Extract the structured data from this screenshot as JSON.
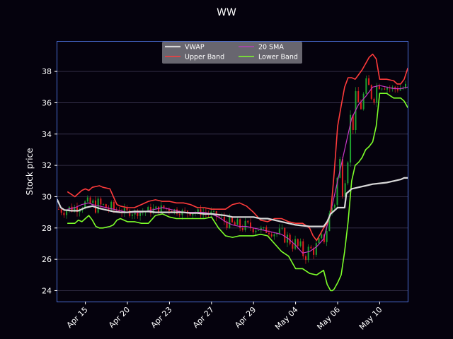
{
  "chart_data": {
    "type": "line",
    "title": "WW",
    "xlabel": "",
    "ylabel": "Stock price",
    "ylim": [
      23.3,
      39.9
    ],
    "yticks": [
      24,
      26,
      28,
      30,
      32,
      34,
      36,
      38
    ],
    "xlim": [
      0,
      100
    ],
    "xticks": [
      {
        "label": "Apr 15",
        "pos": 8
      },
      {
        "label": "Apr 20",
        "pos": 20
      },
      {
        "label": "Apr 23",
        "pos": 32
      },
      {
        "label": "Apr 27",
        "pos": 44
      },
      {
        "label": "Apr 29",
        "pos": 56
      },
      {
        "label": "May 04",
        "pos": 68
      },
      {
        "label": "May 06",
        "pos": 80
      },
      {
        "label": "May 10",
        "pos": 92
      }
    ],
    "grid": "horizontal",
    "legend_position": "top-center",
    "colors": {
      "background": "#05020d",
      "axes_border": "#4a6ed6",
      "grid": "#3a3550",
      "candle_up": "#1fa12f",
      "candle_down": "#e02020",
      "legend_bg": "#6e6b75"
    },
    "series": [
      {
        "name": "VWAP",
        "color": "#d8d8d8",
        "width": 2.2,
        "x": [
          0,
          1,
          2,
          4,
          6,
          8,
          10,
          12,
          14,
          16,
          18,
          20,
          22,
          24,
          26,
          28,
          30,
          32,
          34,
          36,
          38,
          40,
          42,
          44,
          46,
          48,
          50,
          52,
          54,
          56,
          58,
          60,
          62,
          64,
          66,
          68,
          70,
          72,
          74,
          76,
          77,
          78,
          80,
          82,
          82.5,
          84,
          86,
          88,
          90,
          92,
          94,
          96,
          98,
          99,
          100
        ],
        "y": [
          29.8,
          29.3,
          29.15,
          29.1,
          29.1,
          29.3,
          29.4,
          29.25,
          29.15,
          29.05,
          29.0,
          29.0,
          29.05,
          29.05,
          29.05,
          29.0,
          29.0,
          29.0,
          29.0,
          29.0,
          28.95,
          28.95,
          28.9,
          28.9,
          28.85,
          28.8,
          28.7,
          28.7,
          28.7,
          28.7,
          28.6,
          28.6,
          28.5,
          28.4,
          28.3,
          28.2,
          28.15,
          28.1,
          28.1,
          28.1,
          28.4,
          28.9,
          29.3,
          29.3,
          30.2,
          30.5,
          30.6,
          30.7,
          30.8,
          30.85,
          30.9,
          31.0,
          31.1,
          31.2,
          31.2
        ]
      },
      {
        "name": "Upper Band",
        "color": "#ff3b3b",
        "width": 1.6,
        "x": [
          3,
          5,
          6,
          7,
          8,
          9,
          10,
          12,
          13,
          15,
          16,
          17,
          18,
          20,
          22,
          24,
          26,
          28,
          30,
          32,
          34,
          36,
          38,
          40,
          42,
          44,
          46,
          48,
          50,
          52,
          54,
          56,
          58,
          60,
          62,
          64,
          66,
          68,
          70,
          72,
          73,
          74,
          75,
          76,
          77,
          78,
          79,
          80,
          81,
          82,
          83,
          84,
          85,
          86,
          87,
          88,
          89,
          90,
          91,
          92,
          94,
          96,
          97,
          98,
          99,
          100
        ],
        "y": [
          30.3,
          30.0,
          30.2,
          30.4,
          30.5,
          30.4,
          30.6,
          30.7,
          30.6,
          30.5,
          30.0,
          29.5,
          29.4,
          29.3,
          29.3,
          29.5,
          29.7,
          29.8,
          29.7,
          29.7,
          29.6,
          29.6,
          29.5,
          29.3,
          29.3,
          29.2,
          29.2,
          29.2,
          29.5,
          29.6,
          29.4,
          29.0,
          28.5,
          28.4,
          28.6,
          28.6,
          28.4,
          28.3,
          28.3,
          28.0,
          27.5,
          27.2,
          27.6,
          28.0,
          28.3,
          28.9,
          31.5,
          34.5,
          35.8,
          37.0,
          37.6,
          37.6,
          37.5,
          37.8,
          38.1,
          38.5,
          38.9,
          39.1,
          38.8,
          37.5,
          37.5,
          37.4,
          37.2,
          37.2,
          37.5,
          38.2
        ]
      },
      {
        "name": "20 SMA",
        "color": "#c638c6",
        "width": 1.2,
        "x": [
          3,
          5,
          7,
          9,
          10,
          12,
          14,
          16,
          18,
          20,
          22,
          24,
          26,
          28,
          30,
          32,
          34,
          36,
          38,
          40,
          42,
          44,
          46,
          48,
          50,
          52,
          54,
          56,
          58,
          60,
          62,
          64,
          66,
          68,
          70,
          72,
          74,
          76,
          78,
          80,
          82,
          84,
          86,
          88,
          90,
          92,
          94,
          96,
          98,
          100
        ],
        "y": [
          29.2,
          29.3,
          29.5,
          29.6,
          29.5,
          29.4,
          29.3,
          29.2,
          29.1,
          29.0,
          29.0,
          29.0,
          29.1,
          29.2,
          29.3,
          29.2,
          29.1,
          29.0,
          29.0,
          29.0,
          29.0,
          28.9,
          28.7,
          28.4,
          28.2,
          28.1,
          28.1,
          28.0,
          27.9,
          27.8,
          27.7,
          27.6,
          27.3,
          26.9,
          26.4,
          26.5,
          26.8,
          27.3,
          29.0,
          31.0,
          33.0,
          35.0,
          35.9,
          36.4,
          37.0,
          37.1,
          37.0,
          36.9,
          36.9,
          37.0
        ]
      },
      {
        "name": "Lower Band",
        "color": "#7dff2a",
        "width": 1.6,
        "x": [
          3,
          5,
          6,
          7,
          8,
          9,
          10,
          11,
          12,
          13,
          15,
          16,
          17,
          18,
          20,
          22,
          24,
          26,
          28,
          30,
          32,
          34,
          36,
          38,
          40,
          42,
          44,
          46,
          48,
          50,
          52,
          54,
          56,
          58,
          60,
          62,
          64,
          66,
          68,
          70,
          72,
          74,
          76,
          77,
          78,
          78.5,
          79,
          80,
          81,
          82,
          83,
          84,
          85,
          86,
          87,
          88,
          89,
          90,
          91,
          92,
          94,
          96,
          98,
          99,
          100
        ],
        "y": [
          28.3,
          28.3,
          28.5,
          28.4,
          28.6,
          28.8,
          28.5,
          28.1,
          28.0,
          28.0,
          28.1,
          28.2,
          28.5,
          28.6,
          28.4,
          28.4,
          28.3,
          28.3,
          28.8,
          28.9,
          28.7,
          28.6,
          28.6,
          28.6,
          28.6,
          28.6,
          28.7,
          28.0,
          27.5,
          27.4,
          27.5,
          27.5,
          27.5,
          27.6,
          27.5,
          27.0,
          26.5,
          26.2,
          25.4,
          25.4,
          25.1,
          25.0,
          25.3,
          24.4,
          24.0,
          24.0,
          24.1,
          24.5,
          25.0,
          26.5,
          28.4,
          31.0,
          32.0,
          32.2,
          32.5,
          33.0,
          33.2,
          33.5,
          34.5,
          36.6,
          36.6,
          36.3,
          36.3,
          36.1,
          35.7
        ]
      }
    ]
  }
}
